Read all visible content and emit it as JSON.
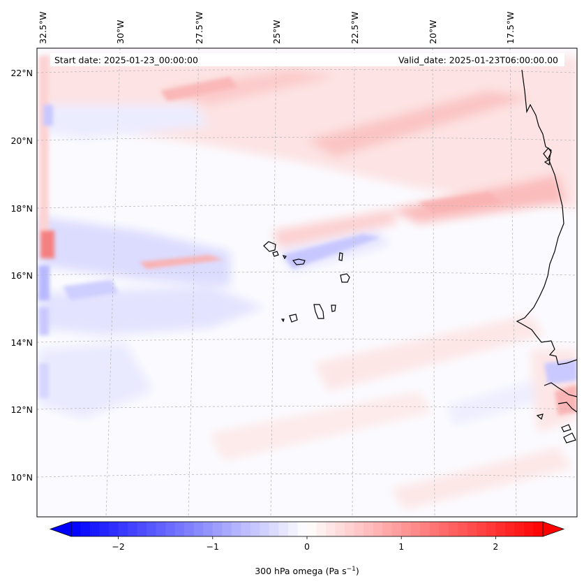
{
  "header": {
    "start_date": "Start date: 2025-01-23_00:00:00",
    "valid_date": "Valid_date: 2025-01-23T06:00:00.00"
  },
  "map": {
    "projection": "lambert-conformal",
    "field": "300 hPa omega",
    "lon_labels": [
      "32.5°W",
      "30°W",
      "27.5°W",
      "25°W",
      "22.5°W",
      "20°W",
      "17.5°W"
    ],
    "lat_labels": [
      "22°N",
      "20°N",
      "18°N",
      "16°N",
      "14°N",
      "12°N",
      "10°N"
    ],
    "gridlines": true,
    "coastlines": true
  },
  "colorbar": {
    "label_text": "300 hPa omega (Pa s",
    "label_exp": "−1",
    "label_close": ")",
    "ticks": [
      "−2",
      "−1",
      "0",
      "1",
      "2"
    ],
    "tick_values": [
      -2,
      -1,
      0,
      1,
      2
    ],
    "range": [
      -2.5,
      2.5
    ],
    "colormap": "bwr",
    "extend": "both",
    "colors": {
      "min": "#0000ff",
      "mid": "#ffffff",
      "max": "#ff0000"
    }
  }
}
